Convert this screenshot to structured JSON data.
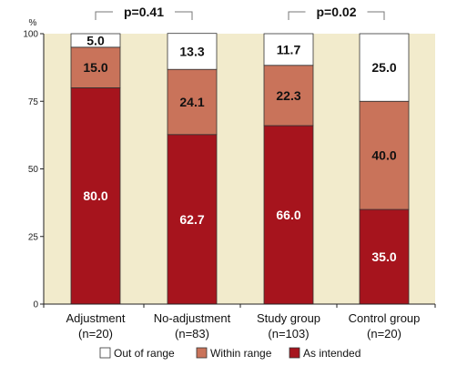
{
  "chart_data": {
    "type": "bar",
    "stacked": true,
    "ylabel": "%",
    "ylim": [
      0,
      100
    ],
    "yticks": [
      "0",
      "25",
      "50",
      "75",
      "100"
    ],
    "categories": [
      {
        "name": "Adjustment",
        "n": "(n=20)"
      },
      {
        "name": "No-adjustment",
        "n": "(n=83)"
      },
      {
        "name": "Study group",
        "n": "(n=103)"
      },
      {
        "name": "Control group",
        "n": "(n=20)"
      }
    ],
    "series": [
      {
        "name": "As intended",
        "color": "#a6141d",
        "text_color": "#ffffff",
        "values": [
          80.0,
          62.7,
          66.0,
          35.0
        ],
        "labels": [
          "80.0",
          "62.7",
          "66.0",
          "35.0"
        ]
      },
      {
        "name": "Within range",
        "color": "#c9735a",
        "text_color": "#111111",
        "values": [
          15.0,
          24.1,
          22.3,
          40.0
        ],
        "labels": [
          "15.0",
          "24.1",
          "22.3",
          "40.0"
        ]
      },
      {
        "name": "Out of range",
        "color": "#ffffff",
        "text_color": "#111111",
        "values": [
          5.0,
          13.3,
          11.7,
          25.0
        ],
        "labels": [
          "5.0",
          "13.3",
          "11.7",
          "25.0"
        ]
      }
    ],
    "legend": {
      "placement": "bottom",
      "order": [
        "Out of range",
        "Within range",
        "As intended"
      ]
    },
    "annotations": [
      {
        "text": "p=0.41",
        "between": [
          0,
          1
        ]
      },
      {
        "text": "p=0.02",
        "between": [
          2,
          3
        ]
      }
    ],
    "plot_background": "#f2ebcc",
    "grid": false
  }
}
